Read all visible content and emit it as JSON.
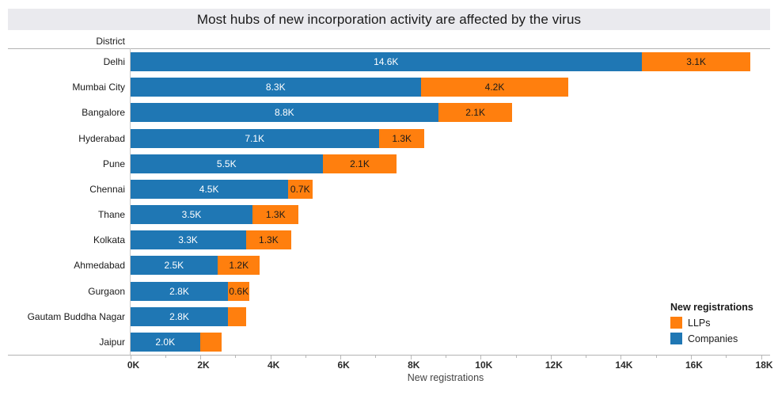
{
  "title": "Most hubs of new incorporation activity are affected by the virus",
  "column_header": "District",
  "axis": {
    "label": "New registrations",
    "tick_labels": [
      "0K",
      "2K",
      "4K",
      "6K",
      "8K",
      "10K",
      "12K",
      "14K",
      "16K",
      "18K"
    ]
  },
  "legend": {
    "title": "New registrations",
    "items": [
      {
        "label": "LLPs",
        "color": "#ff7f0e"
      },
      {
        "label": "Companies",
        "color": "#1f77b4"
      }
    ]
  },
  "colors": {
    "companies": "#1f77b4",
    "llps": "#ff7f0e",
    "label_on_companies": "#ffffff",
    "label_on_llps": "#1a1a1a",
    "title_band_bg": "#eaeaee"
  },
  "chart_data": {
    "type": "bar",
    "orientation": "horizontal",
    "stacked": true,
    "title": "Most hubs of new incorporation activity are affected by the virus",
    "xlabel": "New registrations",
    "ylabel": "District",
    "xlim": [
      0,
      18
    ],
    "x_tick_step": 2,
    "unit": "thousands",
    "grid": false,
    "legend_position": "bottom-right",
    "categories": [
      "Delhi",
      "Mumbai City",
      "Bangalore",
      "Hyderabad",
      "Pune",
      "Chennai",
      "Thane",
      "Kolkata",
      "Ahmedabad",
      "Gurgaon",
      "Gautam Buddha Nagar",
      "Jaipur"
    ],
    "series": [
      {
        "name": "Companies",
        "color": "#1f77b4",
        "values": [
          14.6,
          8.3,
          8.8,
          7.1,
          5.5,
          4.5,
          3.5,
          3.3,
          2.5,
          2.8,
          2.8,
          2.0
        ],
        "labels": [
          "14.6K",
          "8.3K",
          "8.8K",
          "7.1K",
          "5.5K",
          "4.5K",
          "3.5K",
          "3.3K",
          "2.5K",
          "2.8K",
          "2.8K",
          "2.0K"
        ]
      },
      {
        "name": "LLPs",
        "color": "#ff7f0e",
        "values": [
          3.1,
          4.2,
          2.1,
          1.3,
          2.1,
          0.7,
          1.3,
          1.3,
          1.2,
          0.6,
          0.5,
          0.6
        ],
        "labels": [
          "3.1K",
          "4.2K",
          "2.1K",
          "1.3K",
          "2.1K",
          "0.7K",
          "1.3K",
          "1.3K",
          "1.2K",
          "0.6K",
          "",
          ""
        ]
      }
    ]
  }
}
